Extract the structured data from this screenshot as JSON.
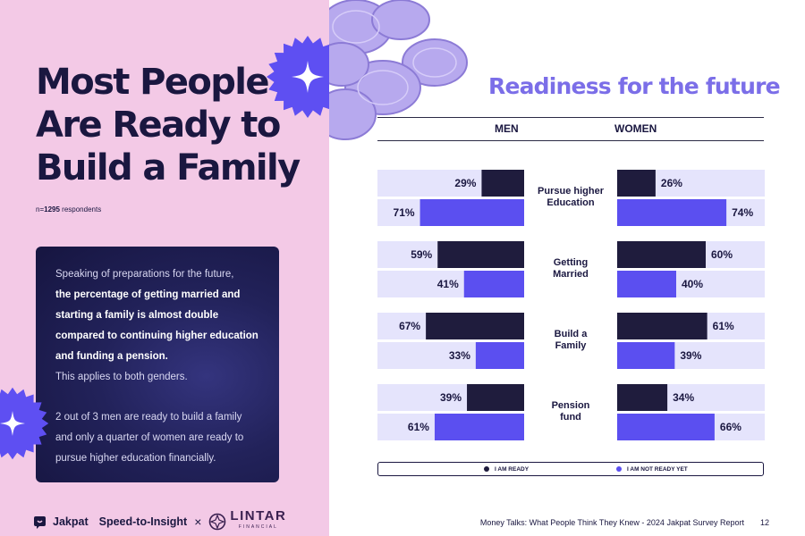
{
  "headline": [
    "Most People",
    "Are Ready to",
    "Build a Family"
  ],
  "sample": {
    "prefix": "n=",
    "count": "1295",
    "suffix": "respondents"
  },
  "text_box": {
    "intro": "Speaking of preparations for the future,",
    "bold": "the percentage of getting married and starting a family is almost double compared to continuing higher education and funding a pension.",
    "tail": "This applies to both genders.",
    "second": "2 out of 3 men are ready to build a family and only a quarter of women are ready to pursue higher education financially."
  },
  "footer_left": {
    "brand": "Jakpat",
    "tagline": "Speed-to-Insight",
    "times": "×",
    "partner": "LINTAR",
    "partner_sub": "FINANCIAL"
  },
  "footer_right": {
    "report": "Money Talks: What People Think They Knew - 2024 Jakpat Survey Report",
    "page": "12"
  },
  "colors": {
    "pink_bg": "#f3c9e6",
    "title_purple": "#7b6ee8",
    "ready": "#1f1c3d",
    "not_ready": "#5b4ff0",
    "track": "#e5e4fc",
    "star_purple": "#5e4ff2"
  },
  "chart_data": {
    "type": "bar",
    "title": "Readiness for the future",
    "groups": [
      "MEN",
      "WOMEN"
    ],
    "categories": [
      "Pursue higher Education",
      "Getting Married",
      "Build a Family",
      "Pension fund"
    ],
    "category_lines": [
      [
        "Pursue higher",
        "Education"
      ],
      [
        "Getting",
        "Married"
      ],
      [
        "Build a",
        "Family"
      ],
      [
        "Pension",
        "fund"
      ]
    ],
    "series": [
      {
        "name": "I AM READY",
        "men": [
          29,
          59,
          67,
          39
        ],
        "women": [
          26,
          60,
          61,
          34
        ]
      },
      {
        "name": "I AM NOT READY YET",
        "men": [
          71,
          41,
          33,
          61
        ],
        "women": [
          74,
          40,
          39,
          66
        ]
      }
    ],
    "value_suffix": "%",
    "xlim": [
      0,
      100
    ],
    "legend_position": "bottom"
  }
}
